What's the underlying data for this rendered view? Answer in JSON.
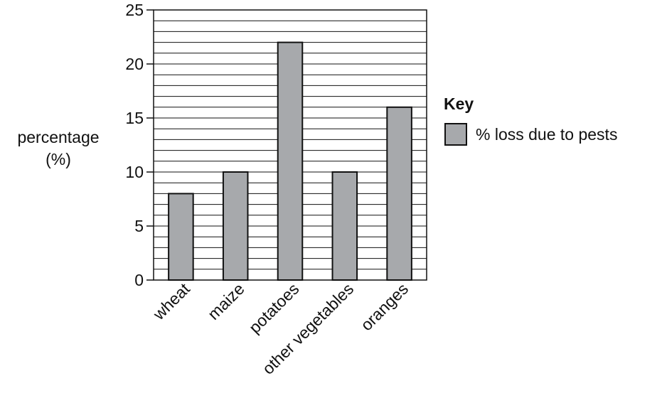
{
  "chart_data": {
    "type": "bar",
    "categories": [
      "wheat",
      "maize",
      "potatoes",
      "other vegetables",
      "oranges"
    ],
    "series": [
      {
        "name": "% loss due to pests",
        "values": [
          8,
          10,
          22,
          10,
          16
        ]
      }
    ],
    "ylabel": [
      "percentage",
      "(%)"
    ],
    "xlabel": "",
    "ylim": [
      0,
      25
    ],
    "yticks": [
      0,
      5,
      10,
      15,
      20,
      25
    ],
    "minor_grid_step": 1,
    "grid": true,
    "legend": {
      "title": "Key",
      "position": "right"
    },
    "colors": {
      "bar_fill": "#a7a9ac",
      "stroke": "#111111"
    }
  }
}
